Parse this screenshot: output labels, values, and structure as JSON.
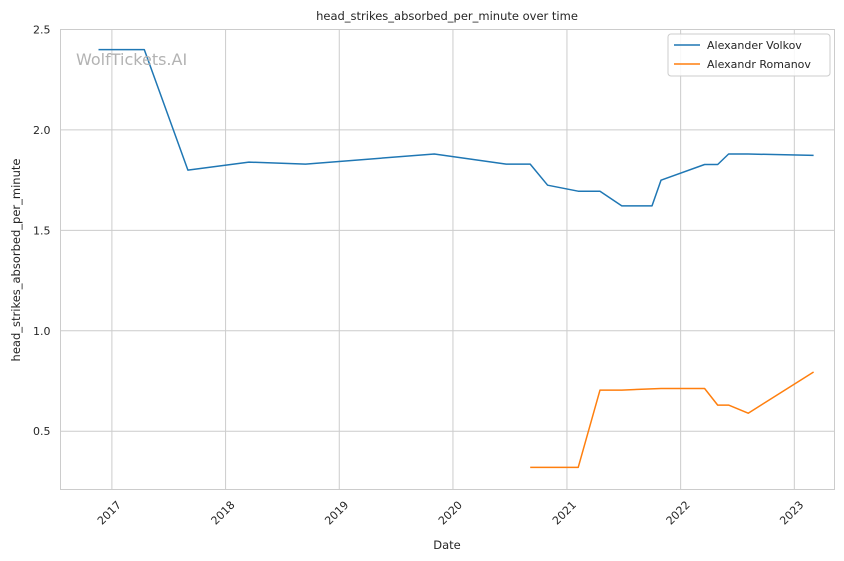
{
  "chart_data": {
    "type": "line",
    "title": "head_strikes_absorbed_per_minute over time",
    "xlabel": "Date",
    "ylabel": "head_strikes_absorbed_per_minute",
    "watermark": "WolfTickets.AI",
    "xlim": [
      "2016-07-20",
      "2023-05-10"
    ],
    "ylim": [
      0.21,
      2.5
    ],
    "x_ticks": [
      "2017-01-01",
      "2018-01-01",
      "2019-01-01",
      "2020-01-01",
      "2021-01-01",
      "2022-01-01",
      "2023-01-01"
    ],
    "x_tick_labels": [
      "2017",
      "2018",
      "2019",
      "2020",
      "2021",
      "2022",
      "2023"
    ],
    "y_ticks": [
      0.5,
      1.0,
      1.5,
      2.0,
      2.5
    ],
    "y_tick_labels": [
      "0.5",
      "1.0",
      "1.5",
      "2.0",
      "2.5"
    ],
    "grid": true,
    "legend_position": "top-right",
    "series": [
      {
        "name": "Alexander Volkov",
        "color": "#1f77b4",
        "x": [
          "2016-11-19",
          "2017-04-15",
          "2017-09-02",
          "2018-03-17",
          "2018-09-15",
          "2019-11-02",
          "2020-06-20",
          "2020-09-05",
          "2020-10-31",
          "2021-02-06",
          "2021-04-17",
          "2021-06-26",
          "2021-10-01",
          "2021-10-30",
          "2022-03-19",
          "2022-04-30",
          "2022-06-04",
          "2022-08-06",
          "2023-03-04"
        ],
        "y": [
          2.4,
          2.4,
          1.8,
          1.84,
          1.83,
          1.88,
          1.83,
          1.83,
          1.725,
          1.695,
          1.695,
          1.622,
          1.622,
          1.75,
          1.828,
          1.828,
          1.88,
          1.88,
          1.873
        ]
      },
      {
        "name": "Alexandr Romanov",
        "color": "#ff7f0e",
        "x": [
          "2020-09-05",
          "2021-02-06",
          "2021-04-17",
          "2021-06-26",
          "2021-10-30",
          "2022-03-19",
          "2022-04-30",
          "2022-06-04",
          "2022-08-06",
          "2023-03-04"
        ],
        "y": [
          0.32,
          0.32,
          0.705,
          0.705,
          0.713,
          0.713,
          0.63,
          0.63,
          0.59,
          0.795
        ]
      }
    ]
  }
}
